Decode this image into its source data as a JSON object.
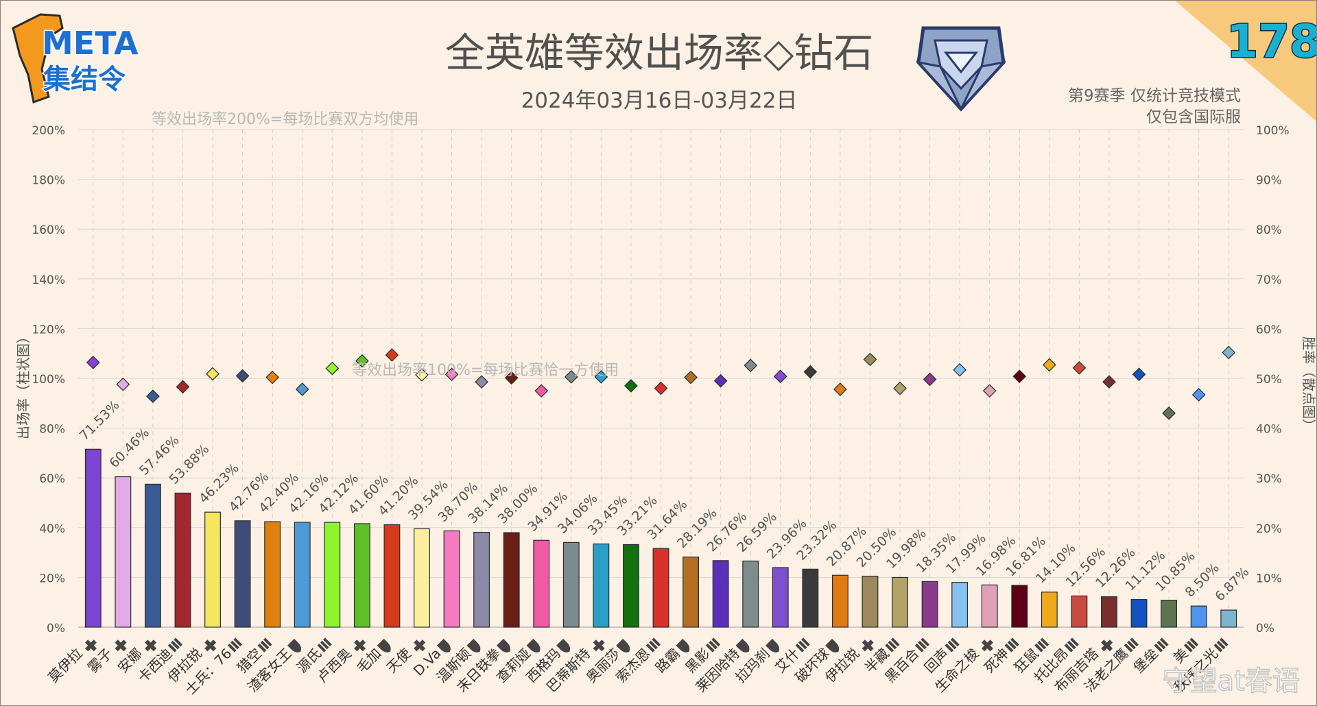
{
  "header": {
    "logo_meta": "META",
    "logo_sub": "集结令",
    "title": "全英雄等效出场率◇钻石",
    "date_range": "2024年03月16日-03月22日",
    "note_line1": "第9赛季 仅统计竞技模式",
    "note_line2": "仅包含国际服",
    "issue_number": "178",
    "annotation_200": "等效出场率200%=每场比赛双方均使用",
    "annotation_100": "等效出场率100%=每场比赛恰一方使用",
    "watermark": "守望at春语"
  },
  "colors": {
    "background": "#fcf1e4",
    "corner_badge": "#f6c97d",
    "issue_number": "#1ab0d0",
    "logo_orange": "#f39a1e",
    "logo_blue": "#1d6fd0"
  },
  "chart_data": {
    "type": "bar",
    "left_axis_label": "出场率（柱状图）",
    "right_axis_label": "胜率（散点图）",
    "left_ticks": [
      "0%",
      "20%",
      "40%",
      "60%",
      "80%",
      "100%",
      "120%",
      "140%",
      "160%",
      "180%",
      "200%"
    ],
    "right_ticks": [
      "0%",
      "10%",
      "20%",
      "30%",
      "40%",
      "50%",
      "60%",
      "70%",
      "80%",
      "90%",
      "100%"
    ],
    "ylim_left": [
      0,
      200
    ],
    "ylim_right": [
      0,
      100
    ],
    "grid": true,
    "heroes": [
      {
        "name": "莫伊拉",
        "role": "support",
        "pick": 71.53,
        "pick_label": "71.53%",
        "win": 53.2,
        "bar_color": "#7c45d0",
        "marker_color": "#8a3fd6"
      },
      {
        "name": "雾子",
        "role": "support",
        "pick": 60.46,
        "pick_label": "60.46%",
        "win": 48.8,
        "bar_color": "#e3aae8",
        "marker_color": "#e3aae8"
      },
      {
        "name": "安娜",
        "role": "support",
        "pick": 57.46,
        "pick_label": "57.46%",
        "win": 46.4,
        "bar_color": "#3b5b95",
        "marker_color": "#3b5b95"
      },
      {
        "name": "卡西迪",
        "role": "damage",
        "pick": 53.88,
        "pick_label": "53.88%",
        "win": 48.3,
        "bar_color": "#a32730",
        "marker_color": "#a32730"
      },
      {
        "name": "伊拉锐",
        "role": "support",
        "pick": 46.23,
        "pick_label": "46.23%",
        "win": 50.9,
        "bar_color": "#f5e65e",
        "marker_color": "#f5e65e"
      },
      {
        "name": "士兵：76",
        "role": "damage",
        "pick": 42.76,
        "pick_label": "42.76%",
        "win": 50.5,
        "bar_color": "#3f4d78",
        "marker_color": "#3f4d78"
      },
      {
        "name": "猎空",
        "role": "damage",
        "pick": 42.4,
        "pick_label": "42.40%",
        "win": 50.2,
        "bar_color": "#e0800f",
        "marker_color": "#e0800f"
      },
      {
        "name": "渣客女王",
        "role": "tank",
        "pick": 42.16,
        "pick_label": "42.16%",
        "win": 47.8,
        "bar_color": "#4d9ad6",
        "marker_color": "#4d9ad6"
      },
      {
        "name": "源氏",
        "role": "damage",
        "pick": 42.12,
        "pick_label": "42.12%",
        "win": 52,
        "bar_color": "#8ef52c",
        "marker_color": "#8ef52c"
      },
      {
        "name": "卢西奥",
        "role": "support",
        "pick": 41.6,
        "pick_label": "41.60%",
        "win": 53.5,
        "bar_color": "#5fbf29",
        "marker_color": "#5fbf29"
      },
      {
        "name": "毛加",
        "role": "tank",
        "pick": 41.2,
        "pick_label": "41.20%",
        "win": 54.7,
        "bar_color": "#d63a1c",
        "marker_color": "#d63a1c"
      },
      {
        "name": "天使",
        "role": "support",
        "pick": 39.54,
        "pick_label": "39.54%",
        "win": 50.7,
        "bar_color": "#fbef9e",
        "marker_color": "#fbef9e"
      },
      {
        "name": "D.Va",
        "role": "tank",
        "pick": 38.7,
        "pick_label": "38.70%",
        "win": 50.8,
        "bar_color": "#f57ac2",
        "marker_color": "#f57ac2"
      },
      {
        "name": "温斯顿",
        "role": "tank",
        "pick": 38.14,
        "pick_label": "38.14%",
        "win": 49.3,
        "bar_color": "#8b8aa8",
        "marker_color": "#8b8aa8"
      },
      {
        "name": "末日铁拳",
        "role": "tank",
        "pick": 38,
        "pick_label": "38.00%",
        "win": 50.1,
        "bar_color": "#6a1e14",
        "marker_color": "#6a1e14"
      },
      {
        "name": "查莉娅",
        "role": "tank",
        "pick": 34.91,
        "pick_label": "34.91%",
        "win": 47.5,
        "bar_color": "#ef5aa3",
        "marker_color": "#ef5aa3"
      },
      {
        "name": "西格玛",
        "role": "tank",
        "pick": 34.06,
        "pick_label": "34.06%",
        "win": 50.3,
        "bar_color": "#7c8b8d",
        "marker_color": "#7c8b8d"
      },
      {
        "name": "巴蒂斯特",
        "role": "support",
        "pick": 33.45,
        "pick_label": "33.45%",
        "win": 50.3,
        "bar_color": "#2aa0c8",
        "marker_color": "#2aa0c8"
      },
      {
        "name": "奥丽莎",
        "role": "tank",
        "pick": 33.21,
        "pick_label": "33.21%",
        "win": 48.5,
        "bar_color": "#13700f",
        "marker_color": "#13700f"
      },
      {
        "name": "索杰恩",
        "role": "damage",
        "pick": 31.64,
        "pick_label": "31.64%",
        "win": 48,
        "bar_color": "#d8322a",
        "marker_color": "#d8322a"
      },
      {
        "name": "路霸",
        "role": "tank",
        "pick": 28.19,
        "pick_label": "28.19%",
        "win": 50.2,
        "bar_color": "#b36f21",
        "marker_color": "#b36f21"
      },
      {
        "name": "黑影",
        "role": "damage",
        "pick": 26.76,
        "pick_label": "26.76%",
        "win": 49.5,
        "bar_color": "#5c2fb8",
        "marker_color": "#5c2fb8"
      },
      {
        "name": "莱因哈特",
        "role": "tank",
        "pick": 26.59,
        "pick_label": "26.59%",
        "win": 52.6,
        "bar_color": "#7d8c8d",
        "marker_color": "#7d8c8d"
      },
      {
        "name": "拉玛刹",
        "role": "tank",
        "pick": 23.96,
        "pick_label": "23.96%",
        "win": 50.4,
        "bar_color": "#7e4fce",
        "marker_color": "#7e4fce"
      },
      {
        "name": "艾什",
        "role": "damage",
        "pick": 23.32,
        "pick_label": "23.32%",
        "win": 51.3,
        "bar_color": "#3a3a3a",
        "marker_color": "#3a3a3a"
      },
      {
        "name": "破坏球",
        "role": "tank",
        "pick": 20.87,
        "pick_label": "20.87%",
        "win": 47.8,
        "bar_color": "#e07a12",
        "marker_color": "#e07a12"
      },
      {
        "name": "伊拉锐",
        "role": "support",
        "pick": 20.5,
        "pick_label": "20.50%",
        "win": 53.8,
        "bar_color": "#9c8a5c",
        "marker_color": "#9c8a5c"
      },
      {
        "name": "半藏",
        "role": "damage",
        "pick": 19.98,
        "pick_label": "19.98%",
        "win": 48,
        "bar_color": "#b0a468",
        "marker_color": "#b0a468"
      },
      {
        "name": "黑百合",
        "role": "damage",
        "pick": 18.35,
        "pick_label": "18.35%",
        "win": 49.8,
        "bar_color": "#8a3b8c",
        "marker_color": "#8a3b8c"
      },
      {
        "name": "回声",
        "role": "damage",
        "pick": 17.99,
        "pick_label": "17.99%",
        "win": 51.7,
        "bar_color": "#86c2f2",
        "marker_color": "#86c2f2"
      },
      {
        "name": "生命之梭",
        "role": "support",
        "pick": 16.98,
        "pick_label": "16.98%",
        "win": 47.5,
        "bar_color": "#e0a0b8",
        "marker_color": "#e0a0b8"
      },
      {
        "name": "死神",
        "role": "damage",
        "pick": 16.81,
        "pick_label": "16.81%",
        "win": 50.4,
        "bar_color": "#5c0018",
        "marker_color": "#5c0018"
      },
      {
        "name": "狂鼠",
        "role": "damage",
        "pick": 14.1,
        "pick_label": "14.10%",
        "win": 52.7,
        "bar_color": "#f0a91d",
        "marker_color": "#f0a91d"
      },
      {
        "name": "托比昂",
        "role": "damage",
        "pick": 12.56,
        "pick_label": "12.56%",
        "win": 52.1,
        "bar_color": "#c84a40",
        "marker_color": "#c84a40"
      },
      {
        "name": "布丽吉塔",
        "role": "support",
        "pick": 12.26,
        "pick_label": "12.26%",
        "win": 49.3,
        "bar_color": "#7a2e2b",
        "marker_color": "#7a2e2b"
      },
      {
        "name": "法老之鹰",
        "role": "damage",
        "pick": 11.12,
        "pick_label": "11.12%",
        "win": 50.8,
        "bar_color": "#1252c0",
        "marker_color": "#1252c0"
      },
      {
        "name": "堡垒",
        "role": "damage",
        "pick": 10.85,
        "pick_label": "10.85%",
        "win": 43,
        "bar_color": "#5c7450",
        "marker_color": "#5c7450"
      },
      {
        "name": "美",
        "role": "damage",
        "pick": 8.5,
        "pick_label": "8.50%",
        "win": 46.7,
        "bar_color": "#4f94ee",
        "marker_color": "#4f94ee"
      },
      {
        "name": "秩序之光",
        "role": "damage",
        "pick": 6.87,
        "pick_label": "6.87%",
        "win": 55.2,
        "bar_color": "#7fb4cf",
        "marker_color": "#7fb4cf"
      }
    ]
  }
}
